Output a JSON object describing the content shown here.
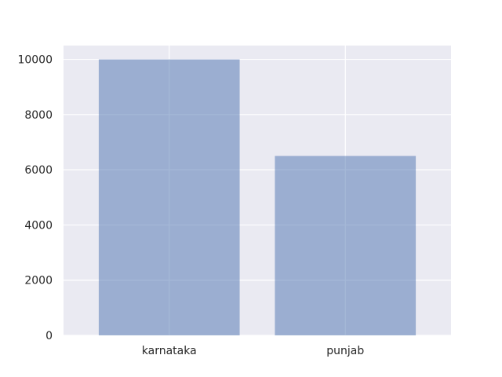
{
  "chart_data": {
    "type": "bar",
    "categories": [
      "karnataka",
      "punjab"
    ],
    "values": [
      10000,
      6500
    ],
    "title": "",
    "xlabel": "",
    "ylabel": "",
    "ylim": [
      0,
      10500
    ],
    "yticks": [
      0,
      2000,
      4000,
      6000,
      8000,
      10000
    ],
    "grid": true,
    "legend": "none",
    "colors": {
      "plot_background": "#eaeaf2",
      "grid": "#ffffff",
      "bar": "#4c72b0",
      "bar_opacity": 0.5,
      "text": "#262626"
    }
  }
}
